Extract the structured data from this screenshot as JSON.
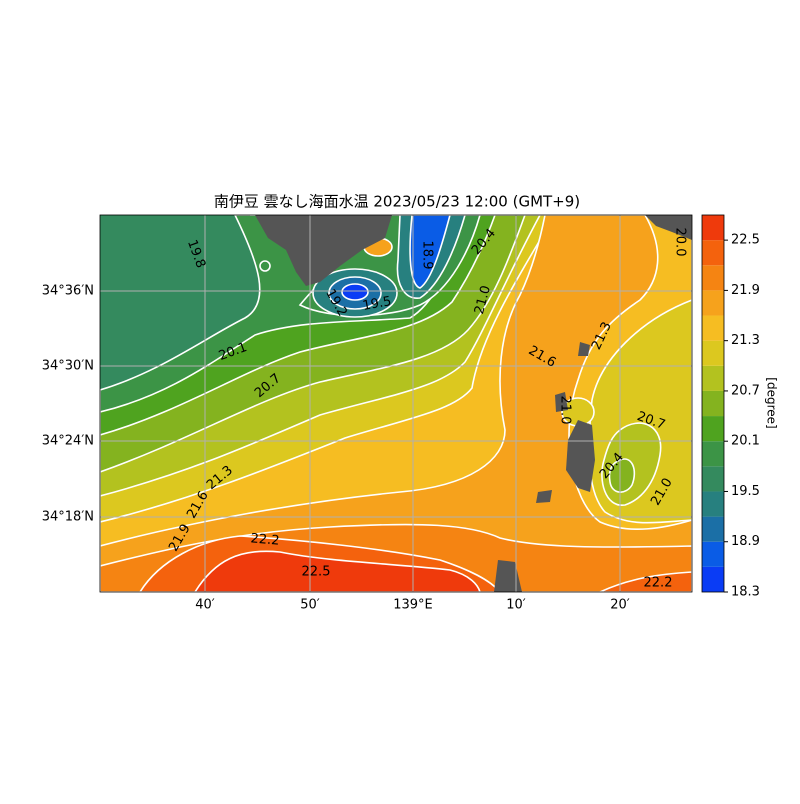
{
  "title": "南伊豆 雲なし海面水温 2023/05/23 12:00 (GMT+9)",
  "x_labels": [
    "40′",
    "50′",
    "139°E",
    "10′",
    "20′"
  ],
  "y_labels": [
    "34°36′N",
    "34°30′N",
    "34°24′N",
    "34°18′N"
  ],
  "contour_labels": [
    "19.8",
    "20.1",
    "20.7",
    "21.3",
    "21.6",
    "21.9",
    "22.2",
    "22.5",
    "19.5",
    "19.2",
    "18.9",
    "20.4",
    "21.0",
    "21.6",
    "21.3",
    "21.0",
    "20.7",
    "20.4",
    "21.0",
    "22.2",
    "20.0"
  ],
  "colorbar": {
    "label": "[degree]",
    "range": [
      18.3,
      22.8
    ],
    "ticks": [
      18.3,
      18.9,
      19.5,
      20.1,
      20.7,
      21.3,
      21.9,
      22.5
    ],
    "colors": [
      "#0a3cf5",
      "#0a5ce6",
      "#1b6fa6",
      "#27807f",
      "#348a5e",
      "#3c9446",
      "#4fa31f",
      "#84b31f",
      "#b3c21f",
      "#dcc81f",
      "#f6bd22",
      "#f6a21c",
      "#f58412",
      "#f4620d",
      "#ef3a0c"
    ]
  }
}
